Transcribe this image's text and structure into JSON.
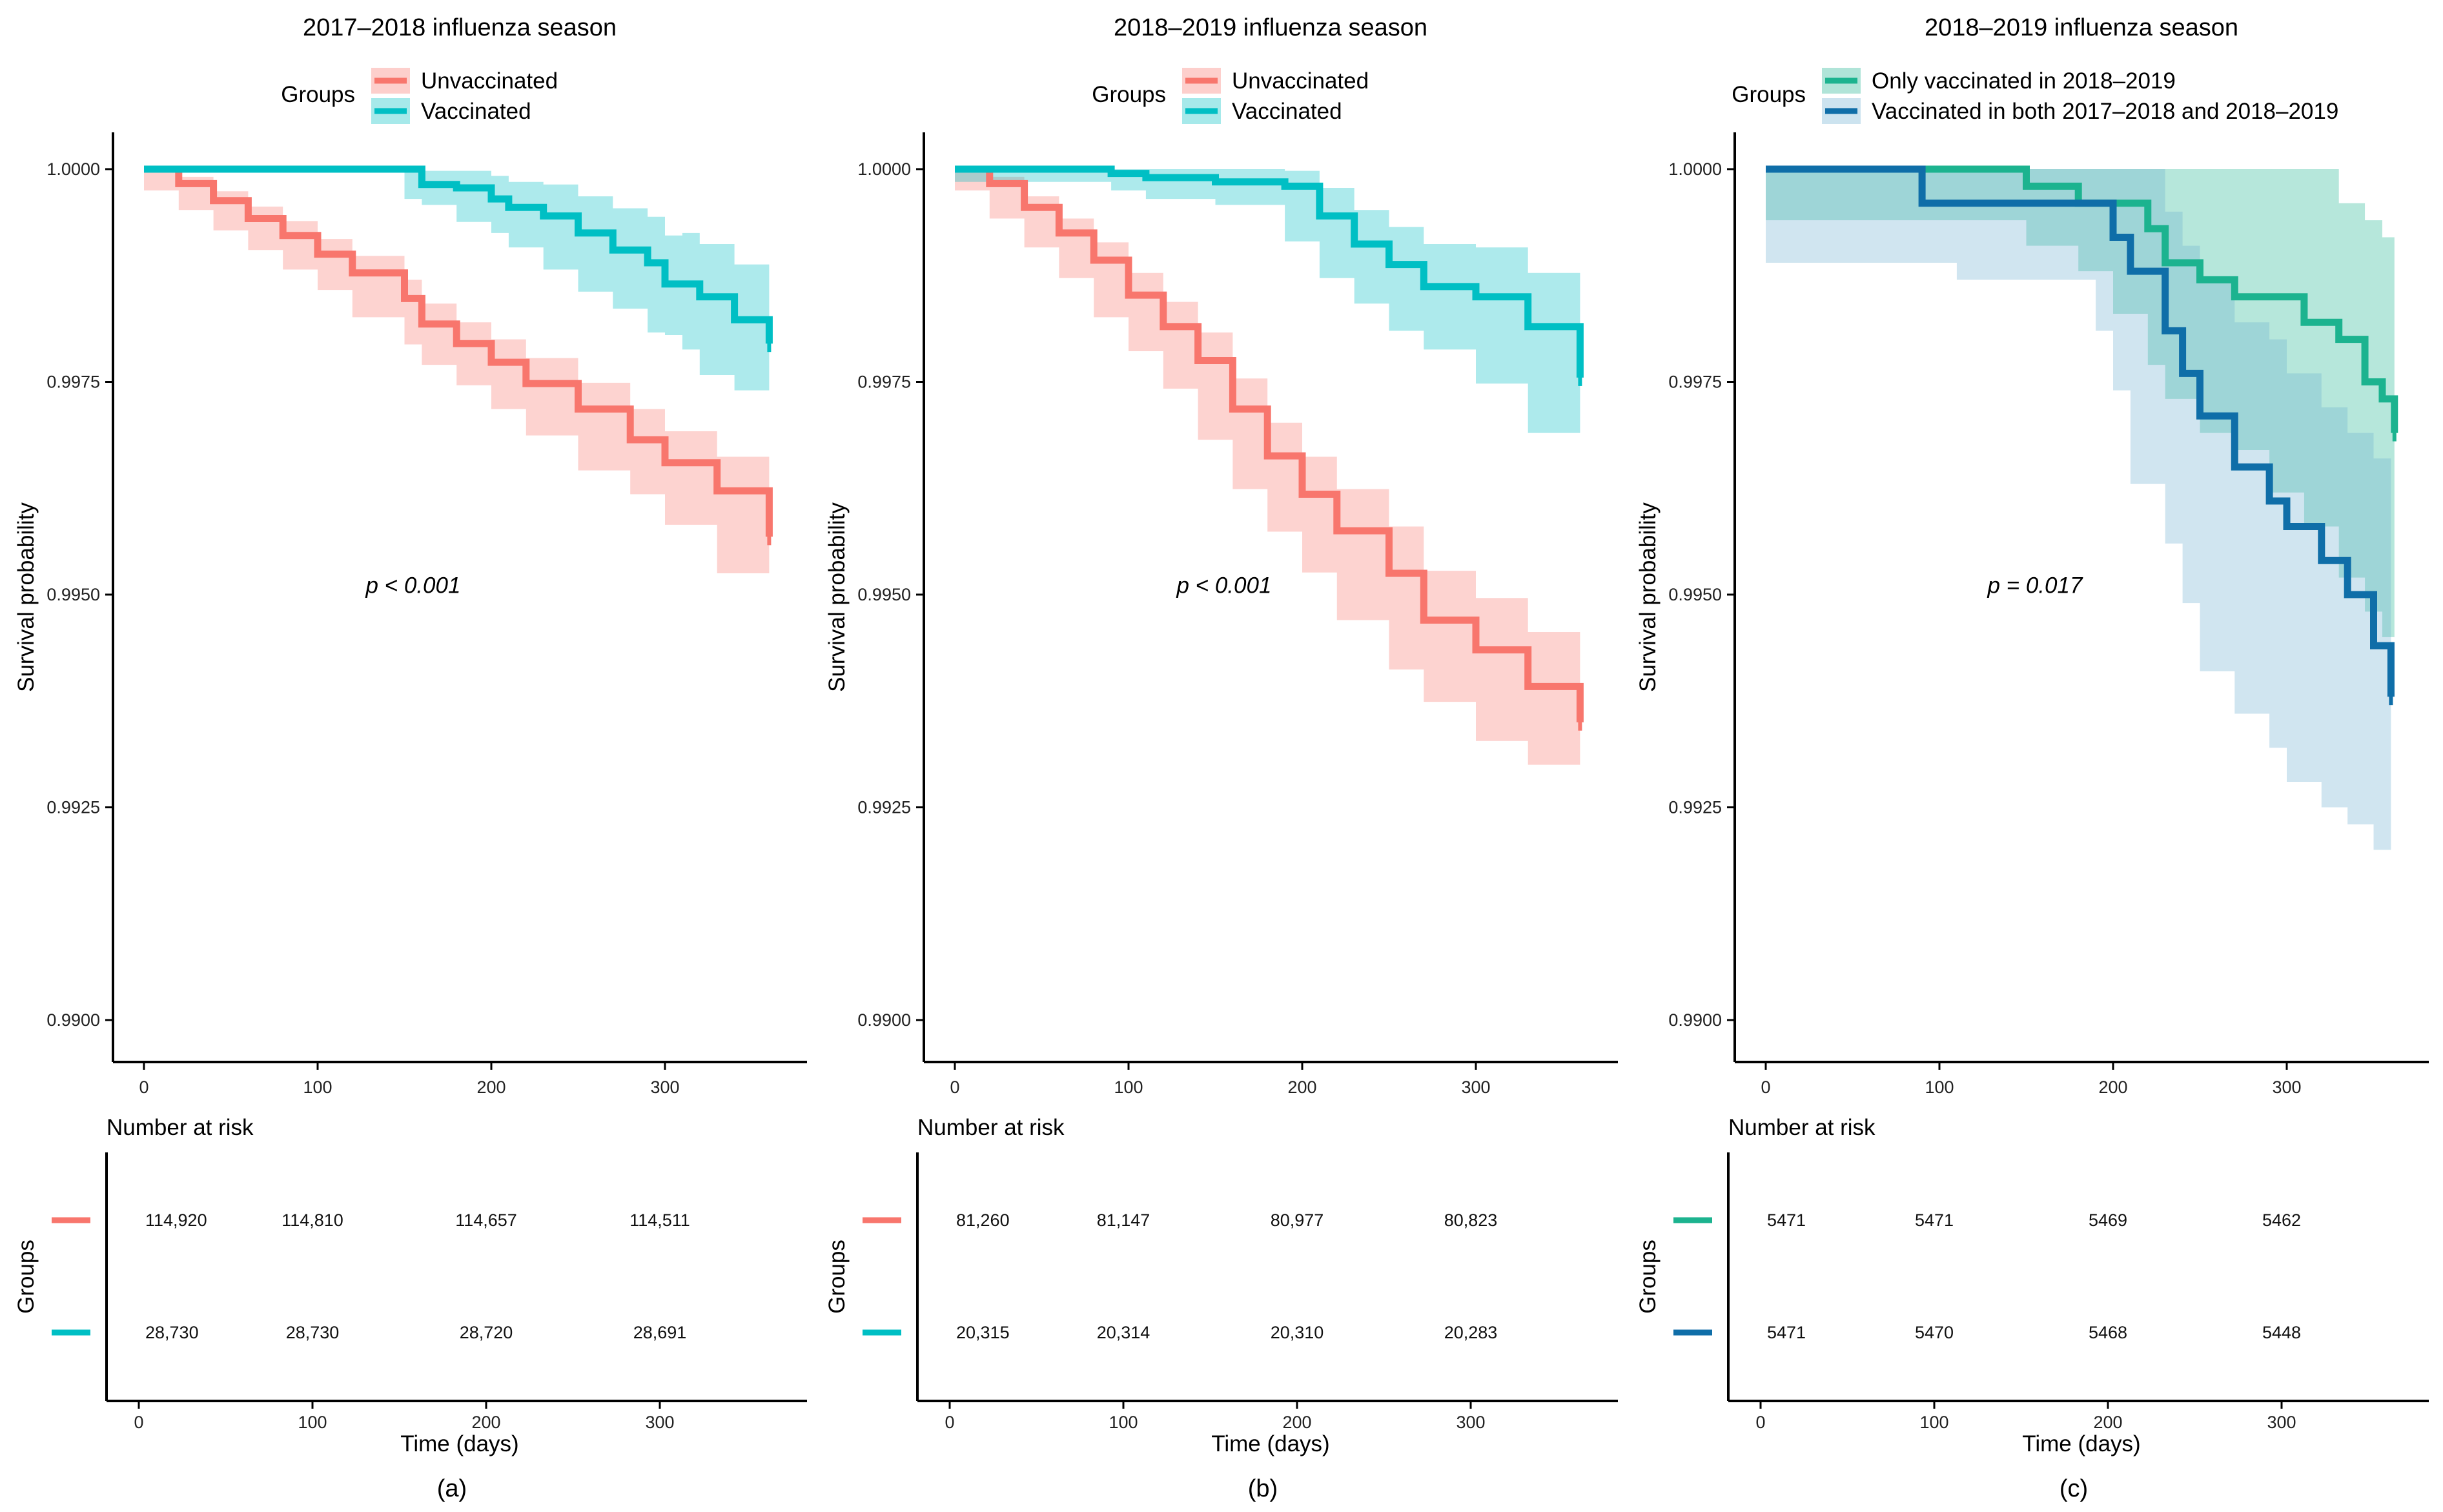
{
  "colors": {
    "red": "#F8766D",
    "red_band": "#F8766D",
    "cyan": "#00BFC4",
    "green": "#1CB38F",
    "blue": "#0F6EA8",
    "blue_band": "#6CAFD0"
  },
  "chart_data": [
    {
      "type": "line",
      "panel": "(a)",
      "title": "2017–2018 influenza season",
      "legend_title": "Groups",
      "xlabel": "",
      "ylabel": "Survival probability",
      "xlim": [
        -17,
        380
      ],
      "ylim": [
        0.9895,
        1.0005
      ],
      "xticks": [
        0,
        100,
        200,
        300
      ],
      "yticks": [
        0.99,
        0.9925,
        0.995,
        0.9975,
        1.0
      ],
      "ytick_labels": [
        "0.9900",
        "0.9925",
        "0.9950",
        "0.9975",
        "1.0000"
      ],
      "p_label": "p < 0.001",
      "series": [
        {
          "name": "Unvaccinated",
          "color_key": "red",
          "x": [
            0,
            20,
            40,
            60,
            80,
            100,
            120,
            150,
            160,
            180,
            200,
            220,
            250,
            280,
            300,
            330,
            360
          ],
          "y": [
            1.0,
            0.99983,
            0.99963,
            0.99942,
            0.99922,
            0.999,
            0.99878,
            0.99848,
            0.99818,
            0.99795,
            0.99773,
            0.99748,
            0.99718,
            0.99682,
            0.99655,
            0.99622,
            0.99568
          ],
          "lower": [
            1.0,
            0.99975,
            0.99952,
            0.99928,
            0.99905,
            0.99882,
            0.99858,
            0.99826,
            0.99794,
            0.9977,
            0.99746,
            0.99718,
            0.99687,
            0.99646,
            0.99618,
            0.99582,
            0.99525
          ],
          "upper": [
            1.0,
            0.99991,
            0.99974,
            0.99956,
            0.99939,
            0.99918,
            0.99898,
            0.9987,
            0.99842,
            0.9982,
            0.998,
            0.99778,
            0.99749,
            0.99718,
            0.99692,
            0.99662,
            0.99611
          ]
        },
        {
          "name": "Vaccinated",
          "color_key": "cyan",
          "x": [
            0,
            150,
            160,
            180,
            200,
            210,
            230,
            250,
            270,
            290,
            300,
            310,
            320,
            340,
            360
          ],
          "y": [
            1.0,
            1.0,
            0.99982,
            0.99978,
            0.99965,
            0.99955,
            0.99945,
            0.99925,
            0.99905,
            0.9989,
            0.99865,
            0.99865,
            0.9985,
            0.99823,
            0.99795
          ],
          "lower": [
            1.0,
            1.0,
            0.99965,
            0.99958,
            0.99938,
            0.99925,
            0.99908,
            0.99882,
            0.99856,
            0.99836,
            0.99808,
            0.99805,
            0.99788,
            0.99758,
            0.9974
          ],
          "upper": [
            1.0,
            1.0,
            0.99998,
            0.99998,
            0.99992,
            0.99985,
            0.99982,
            0.99968,
            0.99954,
            0.99944,
            0.99922,
            0.99925,
            0.99912,
            0.99888,
            0.9985
          ]
        }
      ],
      "risk_table": {
        "title": "Number at risk",
        "ylabel": "Groups",
        "xlabel": "Time (days)",
        "times": [
          0,
          100,
          200,
          300
        ],
        "rows": [
          {
            "color_key": "red",
            "values": [
              "114,920",
              "114,810",
              "114,657",
              "114,511"
            ]
          },
          {
            "color_key": "cyan",
            "values": [
              "28,730",
              "28,730",
              "28,720",
              "28,691"
            ]
          }
        ]
      }
    },
    {
      "type": "line",
      "panel": "(b)",
      "title": "2018–2019 influenza season",
      "legend_title": "Groups",
      "xlabel": "",
      "ylabel": "Survival probability",
      "xlim": [
        -17,
        380
      ],
      "ylim": [
        0.9895,
        1.0005
      ],
      "xticks": [
        0,
        100,
        200,
        300
      ],
      "yticks": [
        0.99,
        0.9925,
        0.995,
        0.9975,
        1.0
      ],
      "ytick_labels": [
        "0.9900",
        "0.9925",
        "0.9950",
        "0.9975",
        "1.0000"
      ],
      "p_label": "p < 0.001",
      "series": [
        {
          "name": "Unvaccinated",
          "color_key": "red",
          "x": [
            0,
            20,
            40,
            60,
            80,
            100,
            120,
            140,
            160,
            180,
            200,
            220,
            250,
            270,
            300,
            330,
            360
          ],
          "y": [
            1.0,
            0.99983,
            0.99955,
            0.99925,
            0.99893,
            0.99852,
            0.99815,
            0.99775,
            0.99718,
            0.99663,
            0.99618,
            0.99575,
            0.99525,
            0.9947,
            0.99435,
            0.99392,
            0.9935
          ],
          "lower": [
            1.0,
            0.99975,
            0.99942,
            0.99908,
            0.99872,
            0.99826,
            0.99786,
            0.99742,
            0.99682,
            0.99624,
            0.99574,
            0.99526,
            0.9947,
            0.99412,
            0.99374,
            0.99328,
            0.993
          ],
          "upper": [
            1.0,
            0.99991,
            0.99968,
            0.99942,
            0.99914,
            0.99878,
            0.99844,
            0.99808,
            0.99754,
            0.99702,
            0.99662,
            0.99624,
            0.9958,
            0.99528,
            0.99496,
            0.99456,
            0.99405
          ]
        },
        {
          "name": "Vaccinated",
          "color_key": "cyan",
          "x": [
            0,
            90,
            110,
            150,
            190,
            210,
            230,
            250,
            270,
            300,
            330,
            360
          ],
          "y": [
            1.0,
            0.99995,
            0.9999,
            0.99985,
            0.9998,
            0.99945,
            0.99912,
            0.99888,
            0.99862,
            0.9985,
            0.99815,
            0.99755
          ],
          "lower": [
            1.0,
            0.99985,
            0.99975,
            0.99965,
            0.99958,
            0.99915,
            0.99872,
            0.99842,
            0.9981,
            0.99788,
            0.99748,
            0.9969
          ],
          "upper": [
            1.0,
            1.0,
            1.0,
            1.0,
            0.99998,
            0.99978,
            0.99952,
            0.99932,
            0.99912,
            0.99908,
            0.99878,
            0.99822
          ]
        }
      ],
      "risk_table": {
        "title": "Number at risk",
        "ylabel": "Groups",
        "xlabel": "Time (days)",
        "times": [
          0,
          100,
          200,
          300
        ],
        "rows": [
          {
            "color_key": "red",
            "values": [
              "81,260",
              "81,147",
              "80,977",
              "80,823"
            ]
          },
          {
            "color_key": "cyan",
            "values": [
              "20,315",
              "20,314",
              "20,310",
              "20,283"
            ]
          }
        ]
      }
    },
    {
      "type": "line",
      "panel": "(c)",
      "title": "2018–2019 influenza season",
      "legend_title": "Groups",
      "xlabel": "",
      "ylabel": "Survival probability",
      "xlim": [
        -17,
        380
      ],
      "ylim": [
        0.9895,
        1.0005
      ],
      "xticks": [
        0,
        100,
        200,
        300
      ],
      "yticks": [
        0.99,
        0.9925,
        0.995,
        0.9975,
        1.0
      ],
      "ytick_labels": [
        "0.9900",
        "0.9925",
        "0.9950",
        "0.9975",
        "1.0000"
      ],
      "p_label": "p = 0.017",
      "series": [
        {
          "name": "Only vaccinated in 2018–2019",
          "color_key": "green",
          "x": [
            0,
            150,
            180,
            200,
            220,
            230,
            250,
            270,
            290,
            310,
            330,
            345,
            355,
            362
          ],
          "y": [
            1.0,
            0.9998,
            0.9996,
            0.9996,
            0.9993,
            0.9989,
            0.9987,
            0.9985,
            0.9985,
            0.9982,
            0.998,
            0.9975,
            0.9973,
            0.9969
          ],
          "lower": [
            1.0,
            0.9994,
            0.9991,
            0.9988,
            0.9983,
            0.9977,
            0.9973,
            0.9969,
            0.9967,
            0.9962,
            0.9958,
            0.9952,
            0.9948,
            0.9945
          ],
          "upper": [
            1.0,
            1.0,
            1.0,
            1.0,
            1.0,
            1.0,
            1.0,
            1.0,
            1.0,
            1.0,
            0.9996,
            0.9994,
            0.9992,
            0.999
          ]
        },
        {
          "name": "Vaccinated in both 2017–2018 and 2018–2019",
          "color_key": "blue",
          "x": [
            0,
            90,
            110,
            190,
            200,
            210,
            230,
            240,
            250,
            270,
            290,
            300,
            320,
            335,
            350,
            360
          ],
          "y": [
            1.0,
            0.9996,
            0.9996,
            0.9996,
            0.9992,
            0.9988,
            0.9981,
            0.9976,
            0.9971,
            0.9965,
            0.9961,
            0.9958,
            0.9954,
            0.995,
            0.9944,
            0.9938
          ],
          "lower": [
            1.0,
            0.9989,
            0.9989,
            0.9987,
            0.9981,
            0.9974,
            0.9963,
            0.9956,
            0.9949,
            0.9941,
            0.9936,
            0.9932,
            0.9928,
            0.9925,
            0.9923,
            0.992
          ],
          "upper": [
            1.0,
            1.0,
            1.0,
            1.0,
            1.0,
            1.0,
            0.9995,
            0.9991,
            0.9987,
            0.9982,
            0.998,
            0.9976,
            0.9972,
            0.9969,
            0.9966,
            0.9962
          ]
        }
      ],
      "risk_table": {
        "title": "Number at risk",
        "ylabel": "Groups",
        "xlabel": "Time (days)",
        "times": [
          0,
          100,
          200,
          300
        ],
        "rows": [
          {
            "color_key": "green",
            "values": [
              "5471",
              "5471",
              "5469",
              "5462"
            ]
          },
          {
            "color_key": "blue",
            "values": [
              "5471",
              "5470",
              "5468",
              "5448"
            ]
          }
        ]
      }
    }
  ]
}
